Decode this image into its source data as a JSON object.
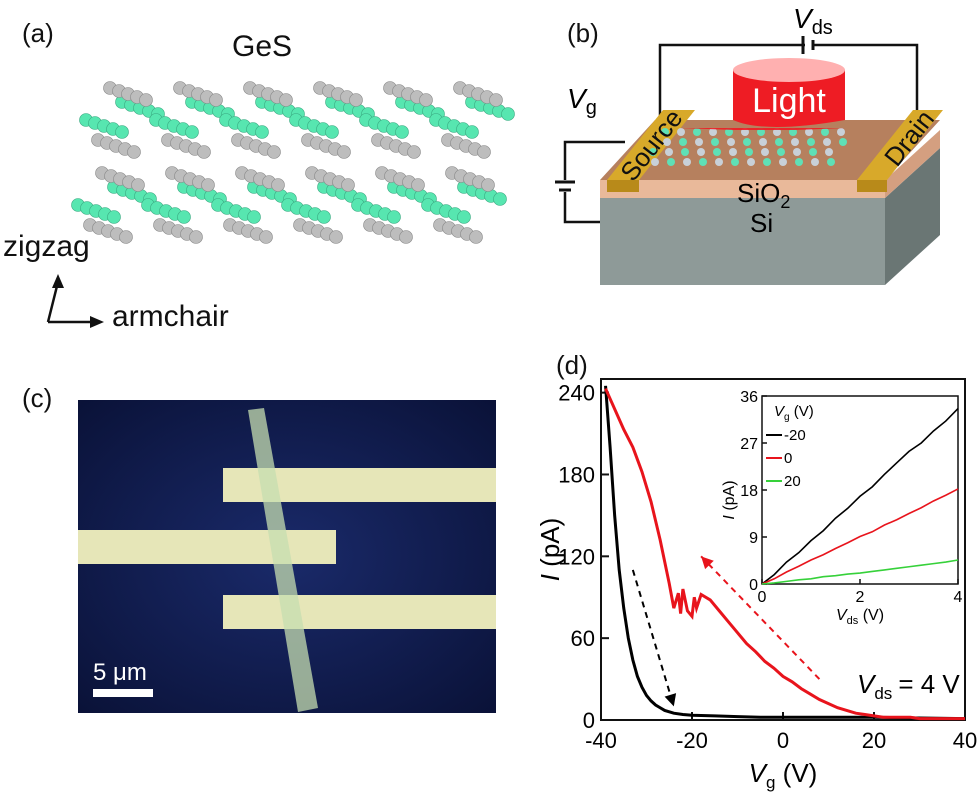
{
  "panel_a": {
    "label": "(a)",
    "material": "GeS",
    "axis_up": "zigzag",
    "axis_right": "armchair",
    "colors": {
      "green_atom": "#57e6b0",
      "gray_atom": "#bdbdbd"
    }
  },
  "panel_b": {
    "label": "(b)",
    "vds_main": "V",
    "vds_sub": "ds",
    "vg_main": "V",
    "vg_sub": "g",
    "light": "Light",
    "source": "Source",
    "drain": "Drain",
    "sio2_main": "SiO",
    "sio2_sub": "2",
    "si": "Si",
    "colors": {
      "light": "#ee1c24",
      "gold": "#d8a92a",
      "sio2": "#e9b99a",
      "si": "#8e9a98"
    }
  },
  "panel_c": {
    "label": "(c)",
    "scale_bar": "5 μm",
    "colors": {
      "background": "#0f1d52",
      "electrode": "#e6e6b8"
    }
  },
  "panel_d": {
    "label": "(d)",
    "annotation_main": "V",
    "annotation_sub": "ds",
    "annotation_value": "= 4 V",
    "inset_legend_title_main": "V",
    "inset_legend_title_sub": "g",
    "inset_legend_title_unit": " (V)"
  },
  "chart_data": [
    {
      "type": "line",
      "xlabel": "Vg (V)",
      "ylabel": "I (pA)",
      "xlabel_main": "V",
      "xlabel_sub": "g",
      "xlabel_unit": " (V)",
      "ylabel_main": "I",
      "ylabel_unit": " (pA)",
      "xlim": [
        -40,
        40
      ],
      "ylim": [
        0,
        250
      ],
      "xticks": [
        -40,
        -20,
        0,
        20,
        40
      ],
      "yticks": [
        0,
        60,
        120,
        180,
        240
      ],
      "series": [
        {
          "color": "#000000",
          "x": [
            -39,
            -38,
            -37,
            -36,
            -35,
            -34,
            -33,
            -32,
            -31,
            -30,
            -29,
            -28,
            -27,
            -26,
            -25,
            -24,
            -22,
            -20,
            -15,
            -10,
            -5,
            0,
            10,
            20,
            30,
            40
          ],
          "y": [
            245,
            200,
            150,
            110,
            82,
            60,
            44,
            32,
            24,
            18,
            14,
            11,
            9,
            7,
            6,
            5,
            4,
            3.5,
            3,
            2.5,
            2,
            2,
            2,
            2,
            1.5,
            1
          ]
        },
        {
          "color": "#e8141c",
          "x": [
            -39,
            -37,
            -35,
            -33,
            -31,
            -29,
            -27,
            -25,
            -24,
            -23,
            -22.5,
            -22,
            -21,
            -20,
            -19.5,
            -19,
            -18,
            -16,
            -14,
            -12,
            -10,
            -8,
            -6,
            -4,
            -2,
            0,
            2,
            4,
            6,
            8,
            10,
            12,
            14,
            16,
            18,
            20,
            22,
            24,
            26,
            28,
            30,
            32,
            34,
            36,
            38,
            40
          ],
          "y": [
            243,
            228,
            213,
            200,
            182,
            160,
            132,
            100,
            82,
            93,
            78,
            96,
            80,
            76,
            90,
            82,
            92,
            88,
            80,
            72,
            64,
            56,
            50,
            43,
            38,
            32,
            28,
            23,
            19,
            15,
            12,
            9,
            7,
            5,
            4,
            3,
            2,
            2,
            2,
            2,
            1,
            1,
            1,
            1,
            1,
            1
          ]
        }
      ],
      "arrows": [
        {
          "color": "#000000",
          "from": [
            -33,
            110
          ],
          "to": [
            -24,
            10
          ],
          "style": "dashed"
        },
        {
          "color": "#e8141c",
          "from": [
            8,
            30
          ],
          "to": [
            -18,
            120
          ],
          "style": "dashed"
        }
      ]
    },
    {
      "type": "line",
      "inset": true,
      "xlabel": "Vds (V)",
      "ylabel": "I (pA)",
      "xlabel_main": "V",
      "xlabel_sub": "ds",
      "xlabel_unit": " (V)",
      "ylabel_main": "I",
      "ylabel_unit": " (pA)",
      "xlim": [
        0,
        4
      ],
      "ylim": [
        0,
        36
      ],
      "xticks": [
        0,
        2,
        4
      ],
      "yticks": [
        0,
        9,
        18,
        27,
        36
      ],
      "legend": "top-left",
      "series": [
        {
          "name": "-20",
          "color": "#000000",
          "x": [
            0,
            0.25,
            0.5,
            0.75,
            1,
            1.25,
            1.5,
            1.75,
            2,
            2.25,
            2.5,
            2.75,
            3,
            3.25,
            3.5,
            3.75,
            4
          ],
          "y": [
            0,
            1.8,
            4.2,
            6.0,
            8.3,
            10.2,
            12.6,
            14.5,
            16.8,
            18.6,
            21.0,
            23.2,
            25.4,
            27.0,
            29.3,
            31.2,
            33.6
          ]
        },
        {
          "name": "0",
          "color": "#e8141c",
          "x": [
            0,
            0.25,
            0.5,
            0.75,
            1,
            1.25,
            1.5,
            1.75,
            2,
            2.25,
            2.5,
            2.75,
            3,
            3.25,
            3.5,
            3.75,
            4
          ],
          "y": [
            0,
            1.0,
            2.3,
            3.4,
            4.6,
            5.6,
            6.8,
            7.9,
            9.1,
            10.0,
            11.3,
            12.3,
            13.5,
            14.6,
            15.9,
            17.0,
            18.2
          ]
        },
        {
          "name": "20",
          "color": "#36d13a",
          "x": [
            0,
            0.25,
            0.5,
            0.75,
            1,
            1.25,
            1.5,
            1.75,
            2,
            2.25,
            2.5,
            2.75,
            3,
            3.25,
            3.5,
            3.75,
            4
          ],
          "y": [
            0,
            0.2,
            0.5,
            0.8,
            1.0,
            1.4,
            1.6,
            1.9,
            2.1,
            2.4,
            2.7,
            3.0,
            3.3,
            3.6,
            3.9,
            4.2,
            4.6
          ]
        }
      ]
    }
  ]
}
